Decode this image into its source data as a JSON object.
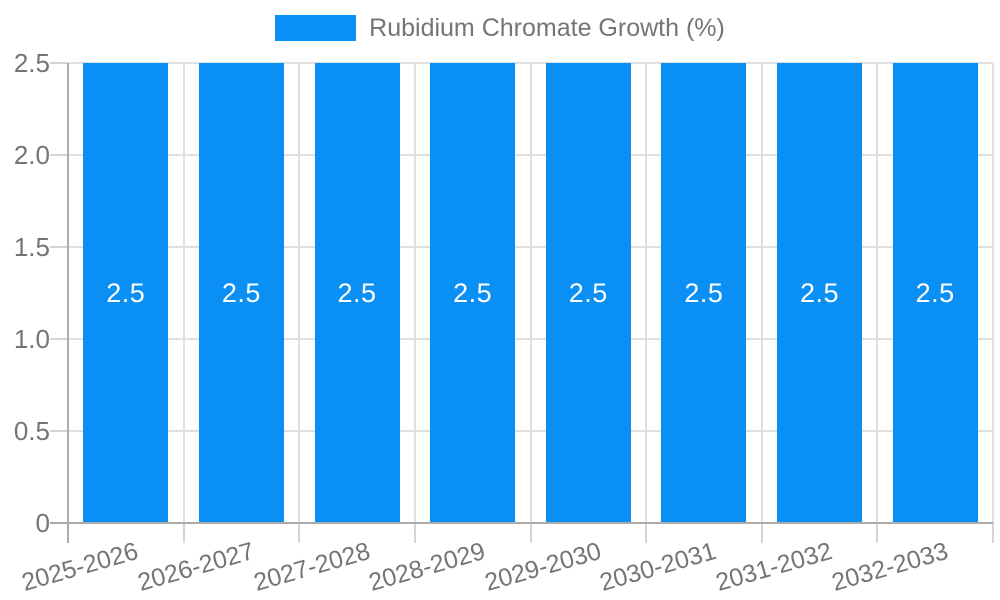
{
  "legend": {
    "label": "Rubidium Chromate Growth (%)",
    "position": "top-center"
  },
  "chart_data": {
    "type": "bar",
    "title": "Rubidium Chromate Growth (%)",
    "categories": [
      "2025-2026",
      "2026-2027",
      "2027-2028",
      "2028-2029",
      "2029-2030",
      "2030-2031",
      "2031-2032",
      "2032-2033"
    ],
    "values": [
      2.5,
      2.5,
      2.5,
      2.5,
      2.5,
      2.5,
      2.5,
      2.5
    ],
    "bar_value_labels": [
      "2.5",
      "2.5",
      "2.5",
      "2.5",
      "2.5",
      "2.5",
      "2.5",
      "2.5"
    ],
    "xlabel": "",
    "ylabel": "",
    "ylim": [
      0,
      2.5
    ],
    "y_tick_labels_top_to_bottom": [
      "2.5",
      "2.0",
      "1.5",
      "1.0",
      "0.5",
      "0"
    ],
    "grid": true,
    "legend_position": "top-center",
    "colors": {
      "bar": "#0a90f4",
      "grid": "#e0e0e0",
      "axis": "#ababab",
      "tick": "#d4d4d4",
      "text": "#757575",
      "value_label": "#ffffff",
      "background": "#ffffff"
    }
  }
}
